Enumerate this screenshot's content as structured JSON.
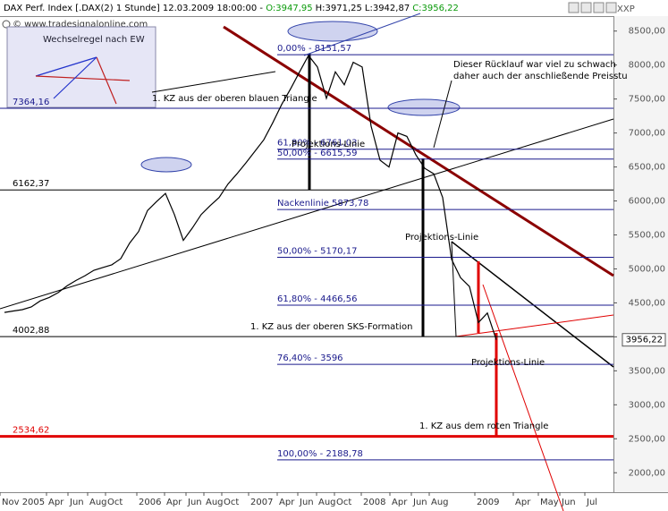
{
  "chart_data": {
    "type": "line",
    "title": "DAX Perf. Index [.DAX(2)   1 Stunde] 12.03.2009 18:00:00 - ",
    "ohlc": [
      "O:3947,95",
      "H:3971,25",
      "L:3942,87",
      "C:3956,22"
    ],
    "source": "© www.tradesignalonline.com",
    "axis_caption": "XXP",
    "color": "#000000",
    "values": [
      4360,
      4380,
      4400,
      4440,
      4530,
      4580,
      4650,
      4750,
      4830,
      4900,
      4980,
      5020,
      5060,
      5150,
      5380,
      5550,
      5860,
      5990,
      6110,
      5800,
      5420,
      5600,
      5800,
      5930,
      6050,
      6250,
      6400,
      6560,
      6730,
      6900,
      7150,
      7420,
      7650,
      7900,
      8140,
      7970,
      7510,
      7900,
      7710,
      8040,
      7970,
      7100,
      6600,
      6500,
      7000,
      6950,
      6680,
      6480,
      6400,
      6050,
      5140,
      4870,
      4740,
      4210,
      4350,
      3956.22
    ],
    "x_labels": [
      "Nov 2005",
      "Apr",
      "Jun",
      "Aug",
      "Oct",
      "2006",
      "Apr",
      "Jun",
      "Aug",
      "Oct",
      "2007",
      "Apr",
      "Jun",
      "Aug",
      "Oct",
      "2008",
      "Apr",
      "Jun",
      "Aug",
      "2009",
      "Apr",
      "May",
      "Jun",
      "Jul"
    ],
    "ylim": [
      1740,
      8720
    ],
    "yticks": [
      {
        "value": 2000,
        "label": "2000,00"
      },
      {
        "value": 2500,
        "label": "2500,00"
      },
      {
        "value": 3000,
        "label": "3000,00"
      },
      {
        "value": 3500,
        "label": "3500,00"
      },
      {
        "value": 4000,
        "label": "4000,00"
      },
      {
        "value": 4500,
        "label": "4500,00"
      },
      {
        "value": 5000,
        "label": "5000,00"
      },
      {
        "value": 5500,
        "label": "5500,00"
      },
      {
        "value": 6000,
        "label": "6000,00"
      },
      {
        "value": 6500,
        "label": "6500,00"
      },
      {
        "value": 7000,
        "label": "7000,00"
      },
      {
        "value": 7500,
        "label": "7500,00"
      },
      {
        "value": 8000,
        "label": "8000,00"
      },
      {
        "value": 8500,
        "label": "8500,00"
      }
    ],
    "last_price": {
      "value": 3956.22,
      "label": "3956,22"
    },
    "levels": [
      {
        "value": 8151.57,
        "label": "0,00% - 8151,57",
        "color": "#1a1a8c"
      },
      {
        "value": 7364.16,
        "label": "7364,16",
        "color": "#1a1a8c"
      },
      {
        "value": 6761.03,
        "label": "61,80% - 6761,03",
        "color": "#1a1a8c"
      },
      {
        "value": 6615.59,
        "label": "50,00% - 6615,59",
        "color": "#1a1a8c"
      },
      {
        "value": 6162.37,
        "label": "6162,37",
        "color": "#000000"
      },
      {
        "value": 5873.78,
        "label": "Nackenlinie 5873,78",
        "color": "#1a1a8c"
      },
      {
        "value": 5170.17,
        "label": "50,00% - 5170,17",
        "color": "#1a1a8c"
      },
      {
        "value": 4466.56,
        "label": "61,80% - 4466,56",
        "color": "#1a1a8c"
      },
      {
        "value": 4002.88,
        "label": "4002,88",
        "color": "#000000"
      },
      {
        "value": 3596,
        "label": "76,40% - 3596",
        "color": "#1a1a8c"
      },
      {
        "value": 2534.62,
        "label": "2534,62",
        "color": "#e00000"
      },
      {
        "value": 2188.78,
        "label": "100,00% - 2188,78",
        "color": "#1a1a8c"
      }
    ],
    "annotations": [
      "Wechselregel nach EW",
      "1. KZ aus der oberen blauen Triangle",
      "Projektions-Linie",
      "Dieser Rücklauf war viel zu schwach",
      "daher auch der anschließende Preisstu",
      "Projektions-Linie",
      "1. KZ aus der oberen SKS-Formation",
      "Projektions-Linie",
      "1. KZ aus dem roten Triangle"
    ]
  }
}
